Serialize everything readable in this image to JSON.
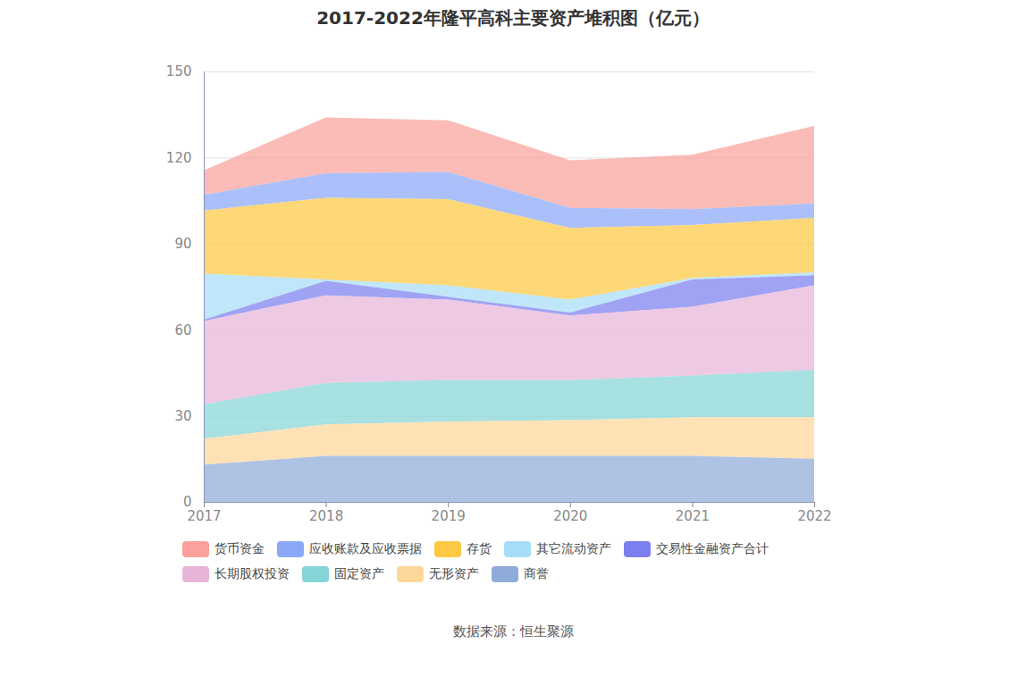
{
  "chart_data": {
    "type": "area",
    "stacked": true,
    "title": "2017-2022年隆平高科主要资产堆积图（亿元）",
    "caption": "数据来源：恒生聚源",
    "x": [
      2017,
      2018,
      2019,
      2020,
      2021,
      2022
    ],
    "xlim": [
      2017,
      2022
    ],
    "xticks": [
      2017,
      2018,
      2019,
      2020,
      2021,
      2022
    ],
    "ylim": [
      0,
      150
    ],
    "yticks": [
      0,
      30,
      60,
      90,
      120,
      150
    ],
    "grid": true,
    "legend": "bottom",
    "series": [
      {
        "name": "货币资金",
        "color": "#f9a19a",
        "values": [
          8.5,
          19.5,
          18,
          16.5,
          19,
          27
        ]
      },
      {
        "name": "应收账款及应收票据",
        "color": "#8aa8f8",
        "values": [
          5.5,
          8.5,
          9.5,
          7,
          5.5,
          5
        ]
      },
      {
        "name": "存货",
        "color": "#fdc843",
        "values": [
          22,
          28.5,
          30,
          25,
          18.5,
          19
        ]
      },
      {
        "name": "其它流动资产",
        "color": "#a6dcf7",
        "values": [
          16,
          0.5,
          4,
          4.5,
          0.5,
          1
        ]
      },
      {
        "name": "交易性金融资产合计",
        "color": "#7b7ff0",
        "values": [
          0.5,
          5,
          1,
          1,
          9.5,
          3.5
        ]
      },
      {
        "name": "长期股权投资",
        "color": "#e8b4d8",
        "values": [
          29,
          30.5,
          28,
          22.5,
          24,
          29.5
        ]
      },
      {
        "name": "固定资产",
        "color": "#86d5d6",
        "values": [
          12,
          14.5,
          14.5,
          14,
          14.5,
          16.5
        ]
      },
      {
        "name": "无形资产",
        "color": "#fdd79a",
        "values": [
          9,
          11,
          12,
          12.5,
          13.5,
          14.5
        ]
      },
      {
        "name": "商誉",
        "color": "#8fabd9",
        "values": [
          13,
          16,
          16,
          16,
          16,
          15
        ]
      }
    ]
  }
}
